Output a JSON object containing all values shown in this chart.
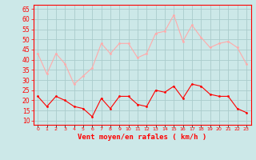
{
  "hours": [
    0,
    1,
    2,
    3,
    4,
    5,
    6,
    7,
    8,
    9,
    10,
    11,
    12,
    13,
    14,
    15,
    16,
    17,
    18,
    19,
    20,
    21,
    22,
    23
  ],
  "wind_avg": [
    22,
    17,
    22,
    20,
    17,
    16,
    12,
    21,
    16,
    22,
    22,
    18,
    17,
    25,
    24,
    27,
    21,
    28,
    27,
    23,
    22,
    22,
    16,
    14
  ],
  "wind_gust": [
    43,
    33,
    43,
    38,
    28,
    32,
    36,
    48,
    43,
    48,
    48,
    41,
    43,
    53,
    54,
    62,
    49,
    57,
    51,
    46,
    48,
    49,
    46,
    38
  ],
  "bg_color": "#cce8e8",
  "grid_color": "#aacccc",
  "avg_color": "#ff0000",
  "gust_color": "#ffaaaa",
  "xlabel": "Vent moyen/en rafales ( km/h )",
  "ylabel_ticks": [
    10,
    15,
    20,
    25,
    30,
    35,
    40,
    45,
    50,
    55,
    60,
    65
  ],
  "ylim": [
    8,
    67
  ],
  "xlim": [
    -0.5,
    23.5
  ]
}
